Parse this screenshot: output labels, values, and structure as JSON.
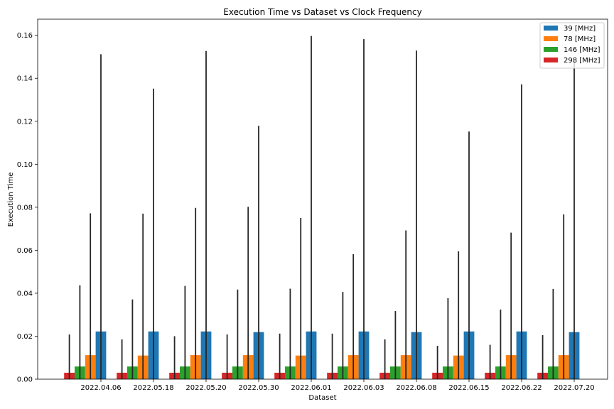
{
  "chart_data": {
    "type": "bar",
    "title": "Execution Time vs Dataset vs Clock Frequency",
    "xlabel": "Dataset",
    "ylabel": "Execution Time",
    "ylim": [
      0,
      0.1675
    ],
    "yticks": [
      "0.00",
      "0.02",
      "0.04",
      "0.06",
      "0.08",
      "0.10",
      "0.12",
      "0.14",
      "0.16"
    ],
    "ytick_values": [
      0,
      0.02,
      0.04,
      0.06,
      0.08,
      0.1,
      0.12,
      0.14,
      0.16
    ],
    "categories": [
      "2022.04.06",
      "2022.05.18",
      "2022.05.20",
      "2022.05.30",
      "2022.06.01",
      "2022.06.03",
      "2022.06.08",
      "2022.06.15",
      "2022.06.22",
      "2022.07.20"
    ],
    "legend_position": "top-right",
    "grid": false,
    "error_bars": true,
    "series": [
      {
        "name": "39 [MHz]",
        "color": "#1f77b4",
        "values": [
          0.0222,
          0.0222,
          0.0222,
          0.0219,
          0.0222,
          0.0222,
          0.0219,
          0.0222,
          0.0222,
          0.0219
        ],
        "errors": [
          0.129,
          0.113,
          0.1305,
          0.096,
          0.1375,
          0.136,
          0.131,
          0.093,
          0.115,
          0.126
        ]
      },
      {
        "name": "78 [MHz]",
        "color": "#ff7f0e",
        "values": [
          0.0112,
          0.011,
          0.0112,
          0.0112,
          0.011,
          0.0112,
          0.0112,
          0.011,
          0.0112,
          0.0112
        ],
        "errors": [
          0.066,
          0.066,
          0.0685,
          0.069,
          0.064,
          0.047,
          0.058,
          0.0485,
          0.057,
          0.0655
        ]
      },
      {
        "name": "146 [MHz]",
        "color": "#2ca02c",
        "values": [
          0.0059,
          0.0059,
          0.0059,
          0.0059,
          0.0059,
          0.0059,
          0.0059,
          0.0059,
          0.0059,
          0.0059
        ],
        "errors": [
          0.0378,
          0.0312,
          0.0375,
          0.0358,
          0.0362,
          0.0347,
          0.0258,
          0.0318,
          0.0265,
          0.0361
        ]
      },
      {
        "name": "298 [MHz]",
        "color": "#d62728",
        "values": [
          0.003,
          0.003,
          0.003,
          0.003,
          0.003,
          0.003,
          0.003,
          0.003,
          0.003,
          0.003
        ],
        "errors": [
          0.0178,
          0.0155,
          0.017,
          0.0178,
          0.0182,
          0.0182,
          0.0155,
          0.0125,
          0.013,
          0.0175
        ]
      }
    ]
  }
}
